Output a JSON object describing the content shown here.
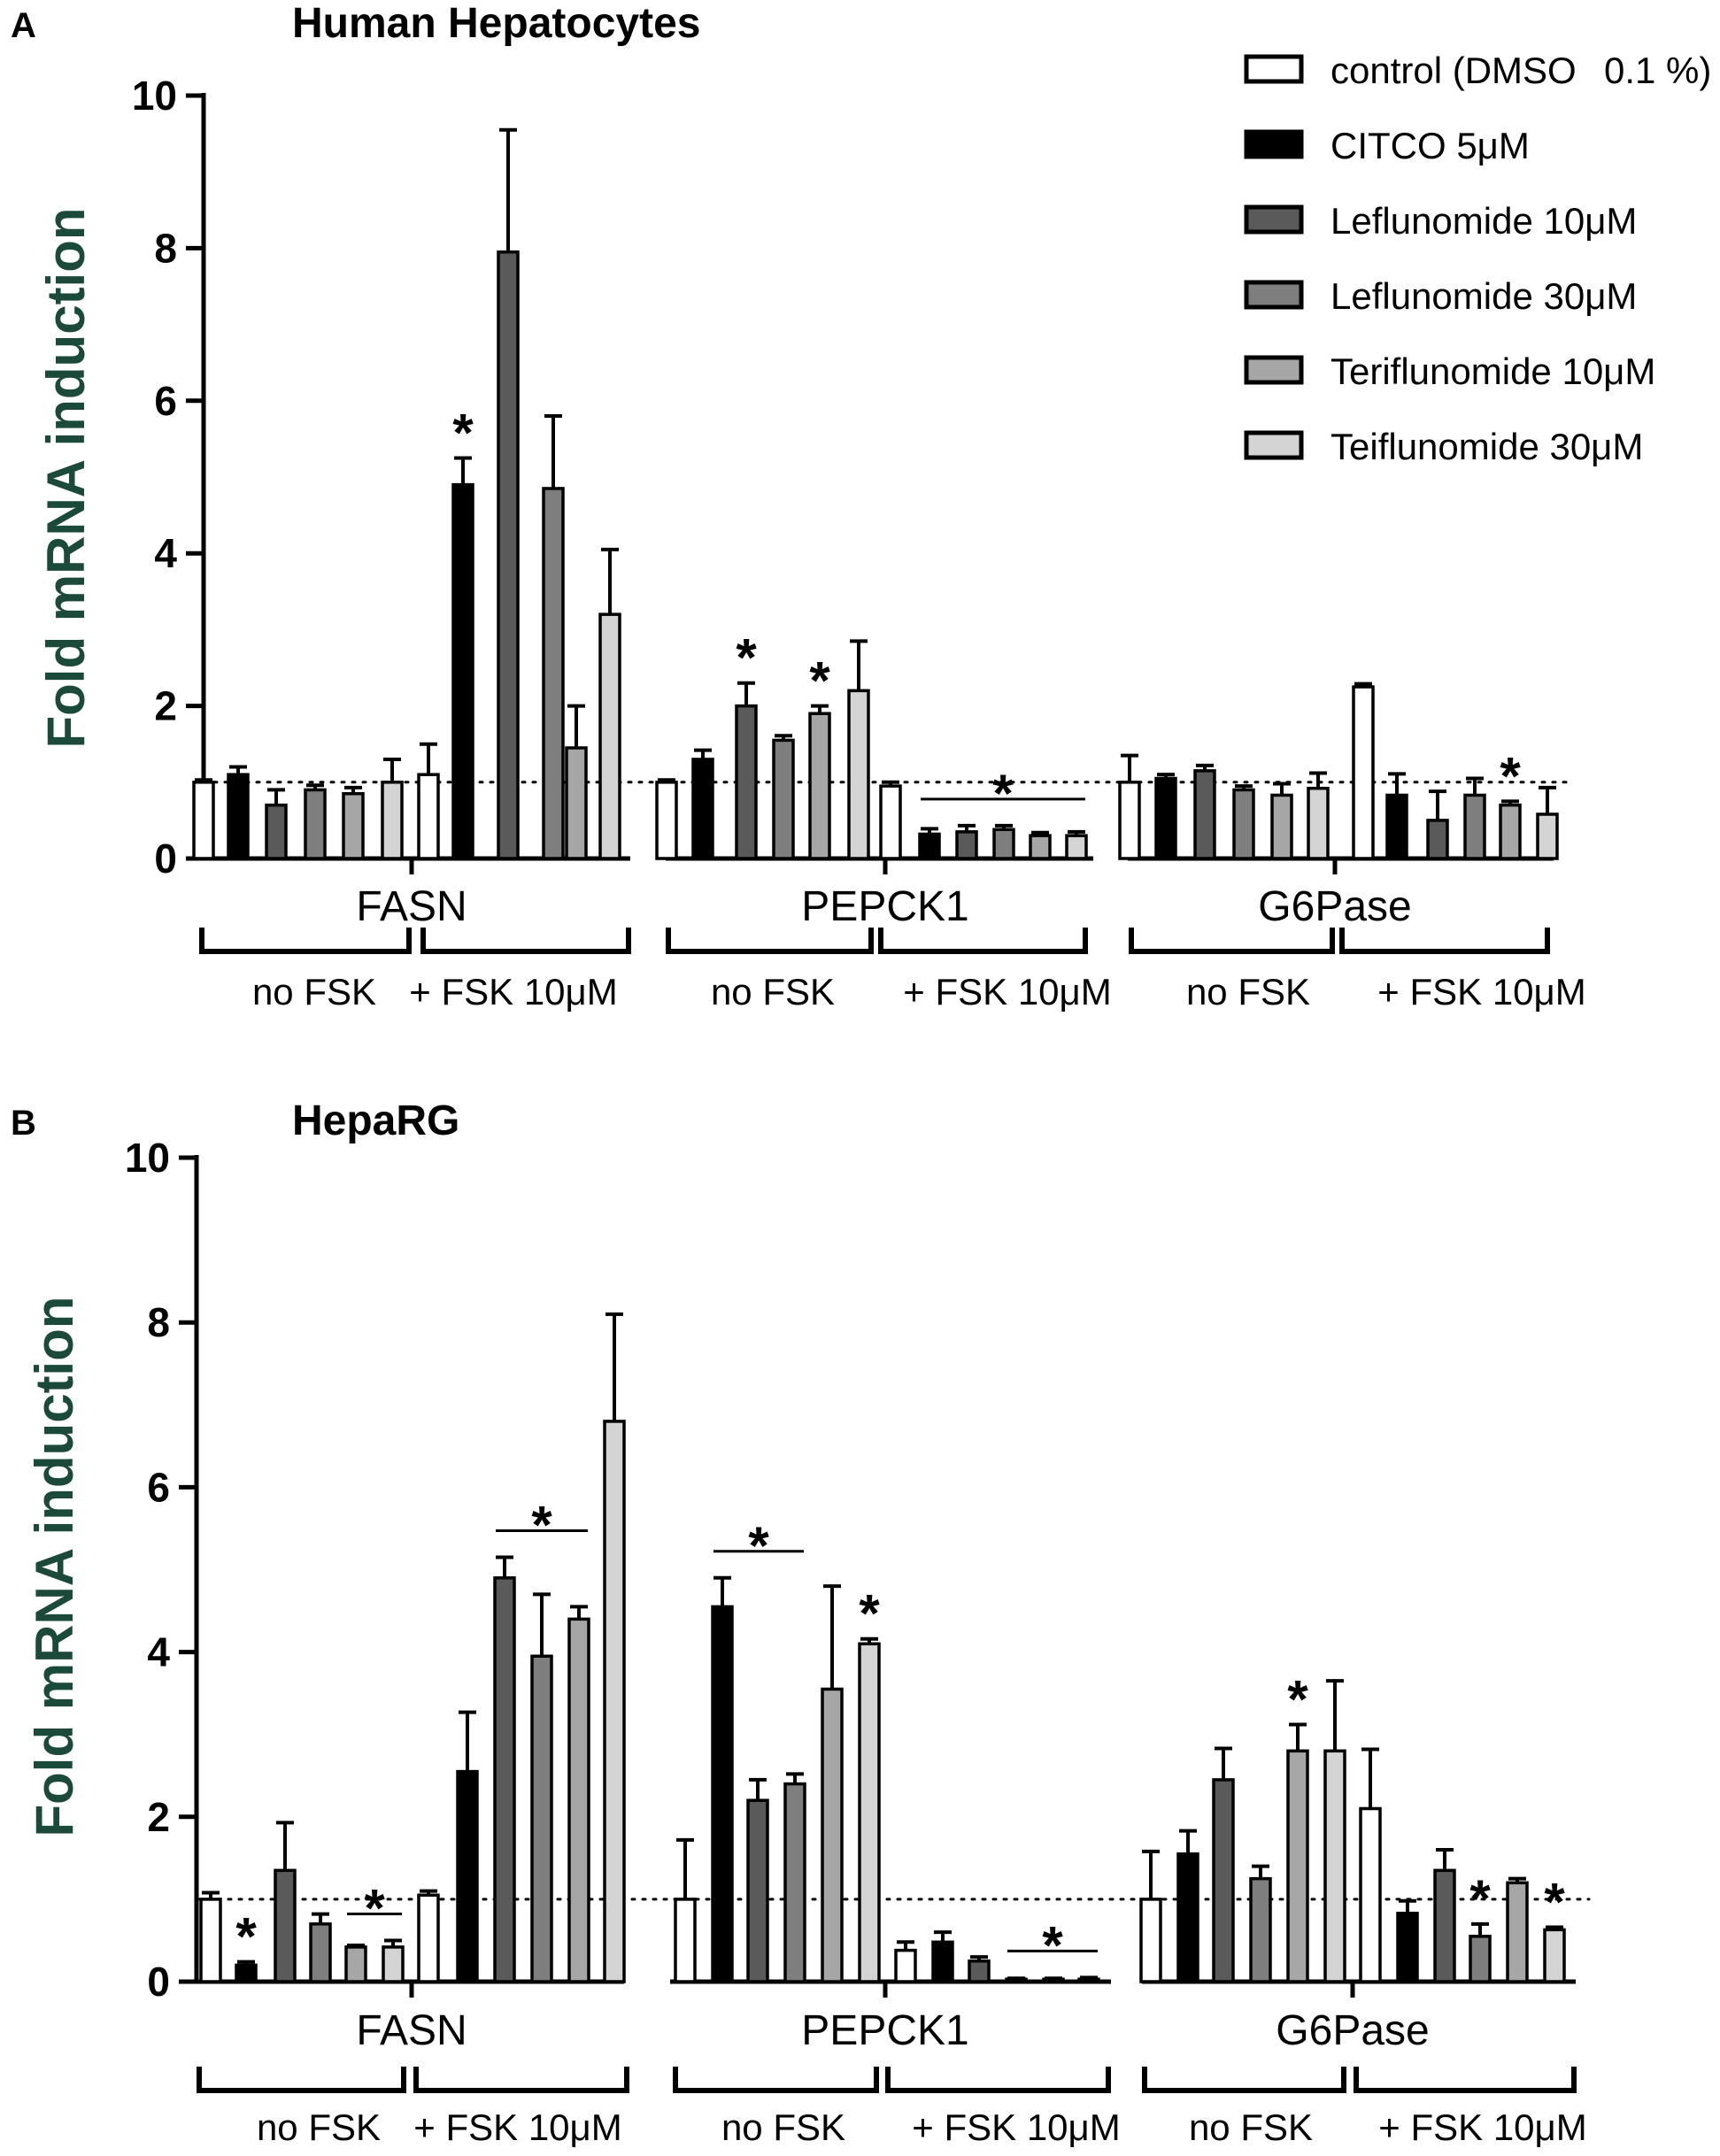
{
  "chart_data": [
    {
      "panel_letter": "A",
      "type": "bar",
      "title": "Human Hepatocytes",
      "ylabel": "Fold mRNA induction",
      "ylim": [
        0,
        10
      ],
      "yticks": [
        "0",
        "2",
        "4",
        "6",
        "8",
        "10"
      ],
      "reference_line": 1,
      "genes": [
        "FASN",
        "PEPCK1",
        "G6Pase"
      ],
      "conditions": [
        "no FSK",
        "+ FSK 10μM"
      ],
      "series": [
        "control (DMSO 0.1 %)",
        "CITCO 5μM",
        "Leflunomide 10μM",
        "Leflunomide 30μM",
        "Teriflunomide 10μM",
        "Teiflunomide 30μM"
      ],
      "values": [
        [
          [
            1.0,
            1.1,
            0.7,
            0.9,
            0.85,
            1.0
          ],
          [
            1.1,
            4.9,
            7.95,
            4.85,
            1.45,
            3.2
          ]
        ],
        [
          [
            1.0,
            1.3,
            2.0,
            1.55,
            1.9,
            2.2
          ],
          [
            0.95,
            0.32,
            0.35,
            0.38,
            0.3,
            0.3
          ]
        ],
        [
          [
            1.0,
            1.05,
            1.15,
            0.9,
            0.83,
            0.92
          ],
          [
            2.25,
            0.83,
            0.5,
            0.83,
            0.7,
            0.58
          ]
        ]
      ],
      "errors": [
        [
          [
            0.03,
            0.1,
            0.2,
            0.06,
            0.08,
            0.3
          ],
          [
            0.4,
            0.35,
            1.6,
            0.95,
            0.55,
            0.85
          ]
        ],
        [
          [
            0.03,
            0.12,
            0.3,
            0.06,
            0.1,
            0.65
          ],
          [
            0.05,
            0.07,
            0.08,
            0.05,
            0.04,
            0.05
          ]
        ],
        [
          [
            0.35,
            0.05,
            0.07,
            0.05,
            0.15,
            0.2
          ],
          [
            0.04,
            0.28,
            0.38,
            0.22,
            0.05,
            0.35
          ]
        ]
      ],
      "significance": [
        {
          "symbol": "*",
          "gene": 0,
          "condition": 1,
          "bar": 1
        },
        {
          "symbol": "*",
          "gene": 1,
          "condition": 0,
          "bar": 2
        },
        {
          "symbol": "*",
          "gene": 1,
          "condition": 0,
          "bar": 4
        },
        {
          "symbol": "*",
          "gene": 1,
          "condition": 1,
          "from_bar": 1,
          "to_bar": 5
        },
        {
          "symbol": "*",
          "gene": 2,
          "condition": 1,
          "bar": 4
        }
      ]
    },
    {
      "panel_letter": "B",
      "type": "bar",
      "title": "HepaRG",
      "ylabel": "Fold mRNA induction",
      "ylim": [
        0,
        10
      ],
      "yticks": [
        "0",
        "2",
        "4",
        "6",
        "8",
        "10"
      ],
      "reference_line": 1,
      "genes": [
        "FASN",
        "PEPCK1",
        "G6Pase"
      ],
      "conditions": [
        "no FSK",
        "+ FSK 10μM"
      ],
      "series": [
        "control (DMSO 0.1 %)",
        "CITCO 5μM",
        "Leflunomide 10μM",
        "Leflunomide 30μM",
        "Teriflunomide 10μM",
        "Teiflunomide 30μM"
      ],
      "values": [
        [
          [
            1.0,
            0.2,
            1.35,
            0.7,
            0.42,
            0.42
          ],
          [
            1.05,
            2.55,
            4.9,
            3.95,
            4.4,
            6.8
          ]
        ],
        [
          [
            1.0,
            4.55,
            2.2,
            2.4,
            3.55,
            4.1
          ],
          [
            0.38,
            0.48,
            0.25,
            0.03,
            0.03,
            0.03
          ]
        ],
        [
          [
            1.0,
            1.55,
            2.45,
            1.25,
            2.8,
            2.8
          ],
          [
            2.1,
            0.83,
            1.35,
            0.55,
            1.2,
            0.63
          ]
        ]
      ],
      "errors": [
        [
          [
            0.08,
            0.04,
            0.58,
            0.12,
            0.02,
            0.08
          ],
          [
            0.05,
            0.72,
            0.25,
            0.75,
            0.15,
            1.3
          ]
        ],
        [
          [
            0.72,
            0.35,
            0.25,
            0.12,
            1.25,
            0.06
          ],
          [
            0.1,
            0.12,
            0.05,
            0.01,
            0.01,
            0.02
          ]
        ],
        [
          [
            0.58,
            0.28,
            0.38,
            0.15,
            0.32,
            0.85
          ],
          [
            0.72,
            0.15,
            0.25,
            0.15,
            0.05,
            0.03
          ]
        ]
      ],
      "significance": [
        {
          "symbol": "*",
          "gene": 0,
          "condition": 0,
          "bar": 1
        },
        {
          "symbol": "*",
          "gene": 0,
          "condition": 0,
          "from_bar": 4,
          "to_bar": 5
        },
        {
          "symbol": "*",
          "gene": 0,
          "condition": 1,
          "from_bar": 2,
          "to_bar": 4
        },
        {
          "symbol": "*",
          "gene": 1,
          "condition": 0,
          "from_bar": 1,
          "to_bar": 3
        },
        {
          "symbol": "*",
          "gene": 1,
          "condition": 0,
          "bar": 5
        },
        {
          "symbol": "*",
          "gene": 1,
          "condition": 1,
          "from_bar": 3,
          "to_bar": 5
        },
        {
          "symbol": "*",
          "gene": 2,
          "condition": 0,
          "bar": 4
        },
        {
          "symbol": "*",
          "gene": 2,
          "condition": 1,
          "bar": 3
        },
        {
          "symbol": "*",
          "gene": 2,
          "condition": 1,
          "bar": 5
        }
      ]
    }
  ],
  "legend": {
    "entries": [
      {
        "label_main": "control (DMSO",
        "label_suffix": "0.1 %)"
      },
      {
        "label_main": "CITCO 5μM"
      },
      {
        "label_main": "Leflunomide 10μM"
      },
      {
        "label_main": "Leflunomide 30μM"
      },
      {
        "label_main": "Teriflunomide 10μM"
      },
      {
        "label_main": "Teiflunomide 30μM"
      }
    ],
    "fill_colors": [
      "#ffffff",
      "#000000",
      "#5a5a5a",
      "#7e7e7e",
      "#a6a6a6",
      "#d4d4d4"
    ]
  },
  "colors": {
    "axis_title": "#1b4a3b",
    "ink": "#000000"
  }
}
